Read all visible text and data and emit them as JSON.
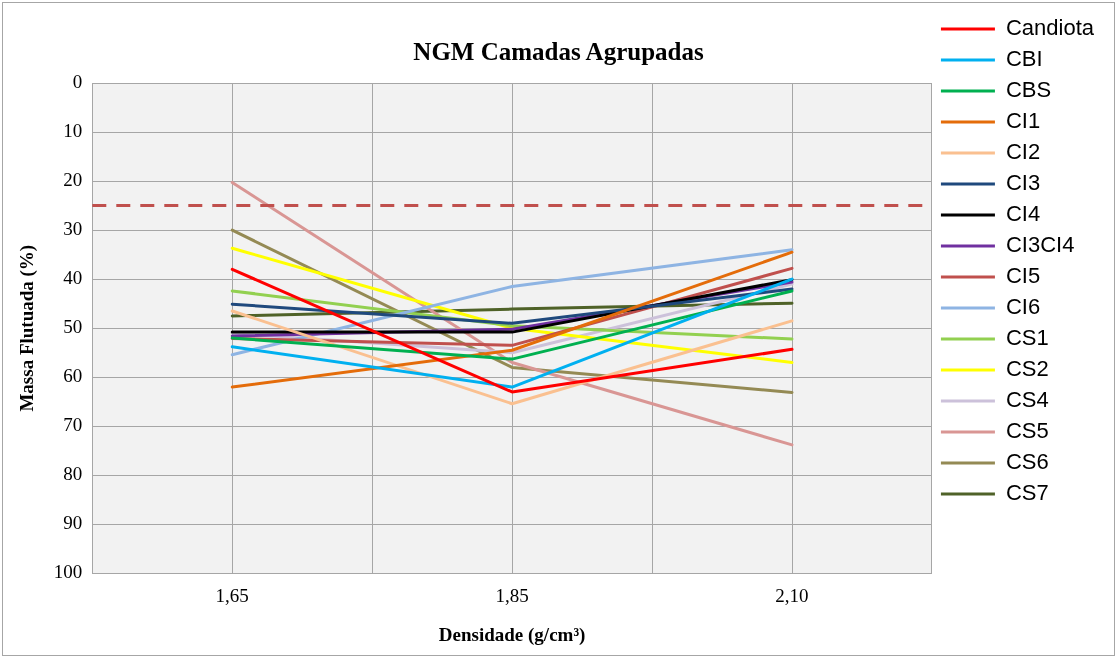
{
  "chart_data": {
    "type": "line",
    "title": "NGM Camadas Agrupadas",
    "xlabel": "Densidade (g/cm³)",
    "ylabel": "Massa Flutuada (%)",
    "categories": [
      "1,65",
      "1,85",
      "2,10"
    ],
    "series": [
      {
        "name": "Candiota",
        "color": "#ff0000",
        "values": [
          38,
          63,
          54.3
        ]
      },
      {
        "name": "CBI",
        "color": "#00b0f0",
        "values": [
          53.8,
          62,
          40
        ]
      },
      {
        "name": "CBS",
        "color": "#00b050",
        "values": [
          52,
          56.3,
          42.4
        ]
      },
      {
        "name": "CI1",
        "color": "#e46c0a",
        "values": [
          62,
          54.5,
          34.5
        ]
      },
      {
        "name": "CI2",
        "color": "#fac090",
        "values": [
          46.5,
          65.4,
          48.5
        ]
      },
      {
        "name": "CI3",
        "color": "#1f497d",
        "values": [
          45.1,
          49,
          42
        ]
      },
      {
        "name": "CI4",
        "color": "#000000",
        "values": [
          50.8,
          50.8,
          40.1
        ]
      },
      {
        "name": "CI3CI4",
        "color": "#7030a0",
        "values": [
          51.6,
          50.2,
          40.6
        ]
      },
      {
        "name": "CI5",
        "color": "#c0504d",
        "values": [
          52.1,
          53.5,
          37.8
        ]
      },
      {
        "name": "CI6",
        "color": "#8eb4e3",
        "values": [
          55.4,
          41.5,
          34
        ]
      },
      {
        "name": "CS1",
        "color": "#92d050",
        "values": [
          42.4,
          49.5,
          52.2
        ]
      },
      {
        "name": "CS2",
        "color": "#ffff00",
        "values": [
          33.7,
          50,
          57
        ]
      },
      {
        "name": "CS4",
        "color": "#ccc1da",
        "values": [
          51,
          55,
          41
        ]
      },
      {
        "name": "CS5",
        "color": "#d99694",
        "values": [
          20.3,
          57,
          73.8
        ]
      },
      {
        "name": "CS6",
        "color": "#948a54",
        "values": [
          30,
          58,
          63.1
        ]
      },
      {
        "name": "CS7",
        "color": "#4f6228",
        "values": [
          47.5,
          46.1,
          44.9
        ]
      }
    ],
    "ylim": [
      100,
      0
    ],
    "yticks": [
      0,
      10,
      20,
      30,
      40,
      50,
      60,
      70,
      80,
      90,
      100
    ],
    "ref_lines": [
      {
        "axis": "y",
        "value": 25,
        "label": null,
        "color": "#c0504d",
        "line_style": "dashed"
      }
    ],
    "grid": true,
    "legend": "right",
    "marker": "none",
    "line_style": "solid"
  }
}
